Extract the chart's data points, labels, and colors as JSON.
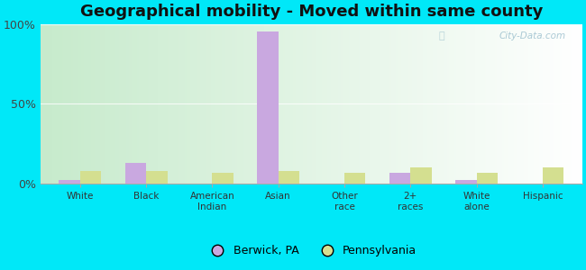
{
  "title": "Geographical mobility - Moved within same county",
  "categories": [
    "White",
    "Black",
    "American\nIndian",
    "Asian",
    "Other\nrace",
    "2+\nraces",
    "White\nalone",
    "Hispanic"
  ],
  "berwick_values": [
    2,
    13,
    0,
    95,
    0,
    7,
    2,
    0
  ],
  "pennsylvania_values": [
    8,
    8,
    7,
    8,
    7,
    10,
    7,
    10
  ],
  "berwick_color": "#c9a8e0",
  "pennsylvania_color": "#d4df90",
  "ylim": [
    0,
    100
  ],
  "yticks": [
    0,
    50,
    100
  ],
  "yticklabels": [
    "0%",
    "50%",
    "100%"
  ],
  "bg_color_topleft": "#c8eac0",
  "bg_color_topright": "#e8f5ee",
  "bg_color_bottomleft": "#ddf0e8",
  "bg_color_bottomright": "#f0faf5",
  "outer_background": "#00e8f8",
  "title_fontsize": 13,
  "legend_labels": [
    "Berwick, PA",
    "Pennsylvania"
  ],
  "watermark": "City-Data.com",
  "bar_width": 0.32
}
